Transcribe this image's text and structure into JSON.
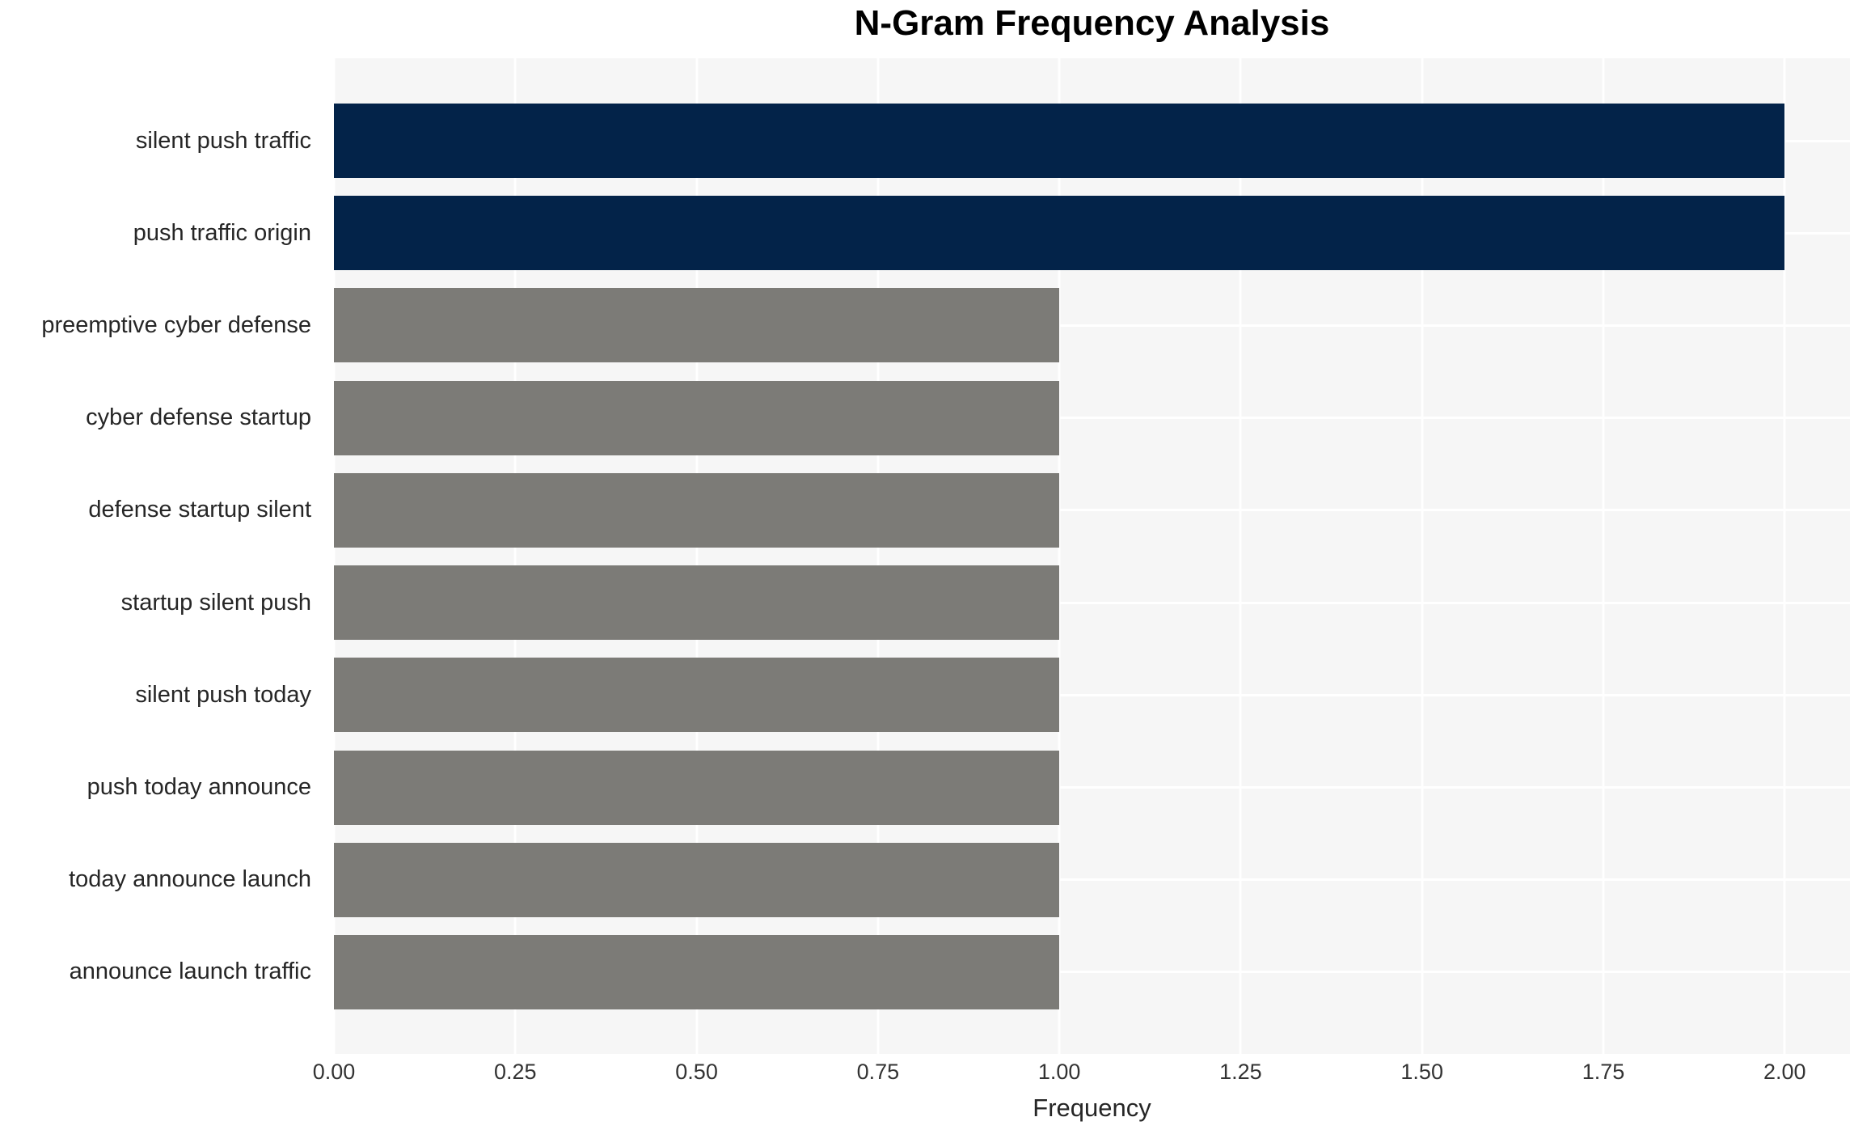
{
  "chart_data": {
    "type": "bar",
    "orientation": "horizontal",
    "title": "N-Gram Frequency Analysis",
    "xlabel": "Frequency",
    "ylabel": "",
    "categories": [
      "silent push traffic",
      "push traffic origin",
      "preemptive cyber defense",
      "cyber defense startup",
      "defense startup silent",
      "startup silent push",
      "silent push today",
      "push today announce",
      "today announce launch",
      "announce launch traffic"
    ],
    "values": [
      2,
      2,
      1,
      1,
      1,
      1,
      1,
      1,
      1,
      1
    ],
    "bar_colors": [
      "#032349",
      "#032349",
      "#7c7b77",
      "#7c7b77",
      "#7c7b77",
      "#7c7b77",
      "#7c7b77",
      "#7c7b77",
      "#7c7b77",
      "#7c7b77"
    ],
    "x_ticks": [
      0,
      0.25,
      0.5,
      0.75,
      1.0,
      1.25,
      1.5,
      1.75,
      2.0
    ],
    "x_tick_labels": [
      "0.00",
      "0.25",
      "0.50",
      "0.75",
      "1.00",
      "1.25",
      "1.50",
      "1.75",
      "2.00"
    ],
    "xlim": [
      0,
      2.09
    ],
    "grid": "white vertical lines at x ticks and white horizontal lines at category centers, drawn behind bars",
    "legend": "none",
    "colors": {
      "highlight": "#032349",
      "default_bar": "#7c7b77",
      "panel_background": "#f6f6f6",
      "gridline": "#ffffff",
      "figure_background": "#ffffff",
      "title_text": "#000000",
      "label_text": "#262626",
      "tick_text": "#333333"
    }
  }
}
